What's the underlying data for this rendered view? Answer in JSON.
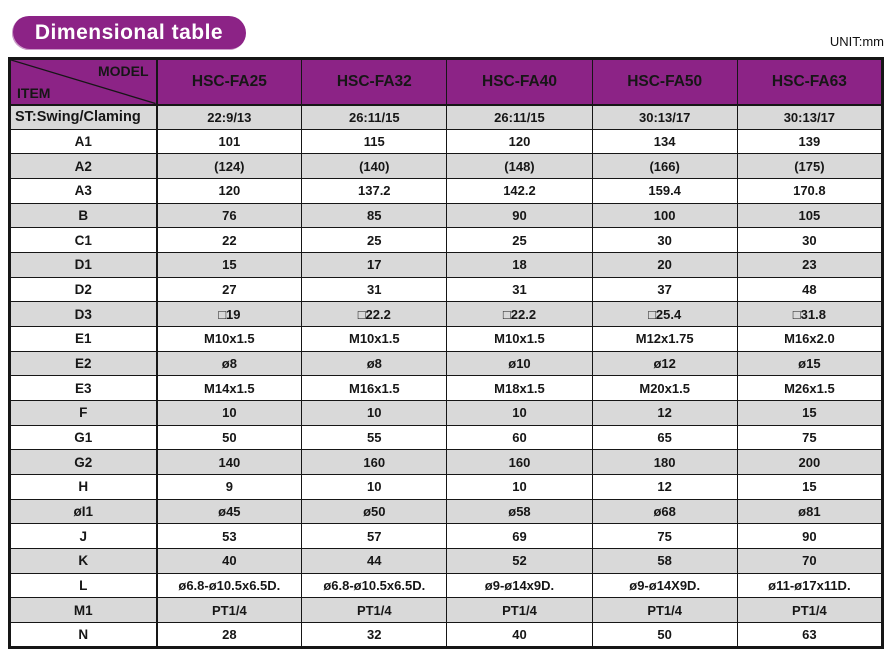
{
  "page": {
    "title": "Dimensional table",
    "unit_label": "UNIT:mm"
  },
  "colors": {
    "header_purple": "#8c2386",
    "row_gray": "#d9d9d9",
    "row_white": "#ffffff",
    "border": "#161616",
    "title_text": "#ffffff"
  },
  "table": {
    "corner": {
      "top_right": "MODEL",
      "bottom_left": "ITEM"
    },
    "columns": [
      "HSC-FA25",
      "HSC-FA32",
      "HSC-FA40",
      "HSC-FA50",
      "HSC-FA63"
    ],
    "rows": [
      {
        "item": "ST:Swing/Claming",
        "values": [
          "22:9/13",
          "26:11/15",
          "26:11/15",
          "30:13/17",
          "30:13/17"
        ]
      },
      {
        "item": "A1",
        "values": [
          "101",
          "115",
          "120",
          "134",
          "139"
        ]
      },
      {
        "item": "A2",
        "values": [
          "(124)",
          "(140)",
          "(148)",
          "(166)",
          "(175)"
        ]
      },
      {
        "item": "A3",
        "values": [
          "120",
          "137.2",
          "142.2",
          "159.4",
          "170.8"
        ]
      },
      {
        "item": "B",
        "values": [
          "76",
          "85",
          "90",
          "100",
          "105"
        ]
      },
      {
        "item": "C1",
        "values": [
          "22",
          "25",
          "25",
          "30",
          "30"
        ]
      },
      {
        "item": "D1",
        "values": [
          "15",
          "17",
          "18",
          "20",
          "23"
        ]
      },
      {
        "item": "D2",
        "values": [
          "27",
          "31",
          "31",
          "37",
          "48"
        ]
      },
      {
        "item": "D3",
        "values": [
          "□19",
          "□22.2",
          "□22.2",
          "□25.4",
          "□31.8"
        ]
      },
      {
        "item": "E1",
        "values": [
          "M10x1.5",
          "M10x1.5",
          "M10x1.5",
          "M12x1.75",
          "M16x2.0"
        ]
      },
      {
        "item": "E2",
        "values": [
          "ø8",
          "ø8",
          "ø10",
          "ø12",
          "ø15"
        ]
      },
      {
        "item": "E3",
        "values": [
          "M14x1.5",
          "M16x1.5",
          "M18x1.5",
          "M20x1.5",
          "M26x1.5"
        ]
      },
      {
        "item": "F",
        "values": [
          "10",
          "10",
          "10",
          "12",
          "15"
        ]
      },
      {
        "item": "G1",
        "values": [
          "50",
          "55",
          "60",
          "65",
          "75"
        ]
      },
      {
        "item": "G2",
        "values": [
          "140",
          "160",
          "160",
          "180",
          "200"
        ]
      },
      {
        "item": "H",
        "values": [
          "9",
          "10",
          "10",
          "12",
          "15"
        ]
      },
      {
        "item": "øI1",
        "values": [
          "ø45",
          "ø50",
          "ø58",
          "ø68",
          "ø81"
        ]
      },
      {
        "item": "J",
        "values": [
          "53",
          "57",
          "69",
          "75",
          "90"
        ]
      },
      {
        "item": "K",
        "values": [
          "40",
          "44",
          "52",
          "58",
          "70"
        ]
      },
      {
        "item": "L",
        "values": [
          "ø6.8-ø10.5x6.5D.",
          "ø6.8-ø10.5x6.5D.",
          "ø9-ø14x9D.",
          "ø9-ø14X9D.",
          "ø11-ø17x11D."
        ]
      },
      {
        "item": "M1",
        "values": [
          "PT1/4",
          "PT1/4",
          "PT1/4",
          "PT1/4",
          "PT1/4"
        ]
      },
      {
        "item": "N",
        "values": [
          "28",
          "32",
          "40",
          "50",
          "63"
        ]
      }
    ]
  }
}
